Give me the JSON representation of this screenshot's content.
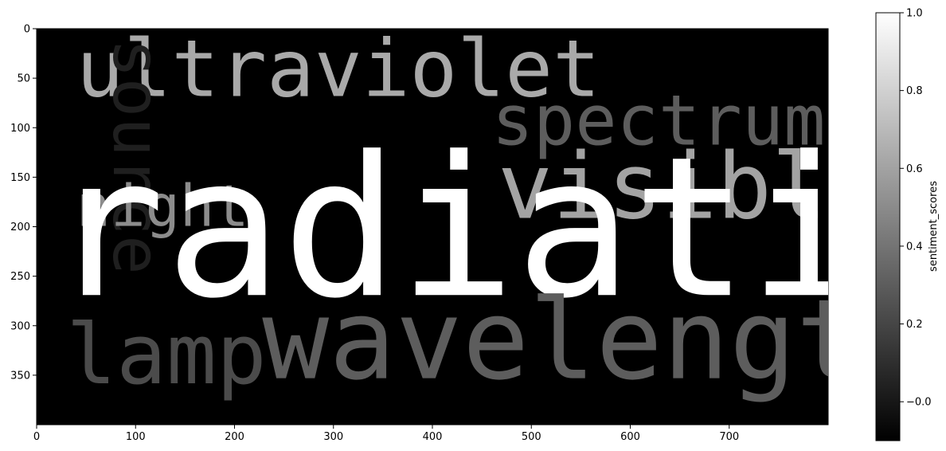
{
  "chart_data": {
    "type": "wordcloud-image",
    "image_extent": {
      "x": [
        0,
        800
      ],
      "y": [
        0,
        400
      ]
    },
    "x_ticks": [
      "0",
      "100",
      "200",
      "300",
      "400",
      "500",
      "600",
      "700"
    ],
    "y_ticks": [
      "0",
      "50",
      "100",
      "150",
      "200",
      "250",
      "300",
      "350"
    ],
    "words": [
      {
        "text": "ultraviolet",
        "x": 40,
        "y": 68,
        "size": 80,
        "gray": "#a9a9a9",
        "vertical": false
      },
      {
        "text": "source",
        "x": 24,
        "y": 10,
        "size": 66,
        "gray": "#1f1f1f",
        "vertical": true
      },
      {
        "text": "spectrum",
        "x": 460,
        "y": 117,
        "size": 70,
        "gray": "#5d5d5d",
        "vertical": false
      },
      {
        "text": "visible",
        "x": 466,
        "y": 191,
        "size": 92,
        "gray": "#a3a3a3",
        "vertical": false
      },
      {
        "text": "night",
        "x": 40,
        "y": 199,
        "size": 58,
        "gray": "#8c8c8c",
        "vertical": false
      },
      {
        "text": "radiation",
        "x": 12,
        "y": 269,
        "size": 196,
        "gray": "#ffffff",
        "vertical": false
      },
      {
        "text": "lamp",
        "x": 30,
        "y": 358,
        "size": 84,
        "gray": "#4b4b4b",
        "vertical": false
      },
      {
        "text": "wavelength",
        "x": 228,
        "y": 353,
        "size": 112,
        "gray": "#5d5d5d",
        "vertical": false
      }
    ],
    "colorbar": {
      "label": "sentiment_scores",
      "range": [
        -0.1,
        1.0
      ],
      "colormap": "gray",
      "ticks": [
        "−0.0",
        "0.2",
        "0.4",
        "0.6",
        "0.8",
        "1.0"
      ],
      "tick_values": [
        0.0,
        0.2,
        0.4,
        0.6,
        0.8,
        1.0
      ]
    }
  }
}
